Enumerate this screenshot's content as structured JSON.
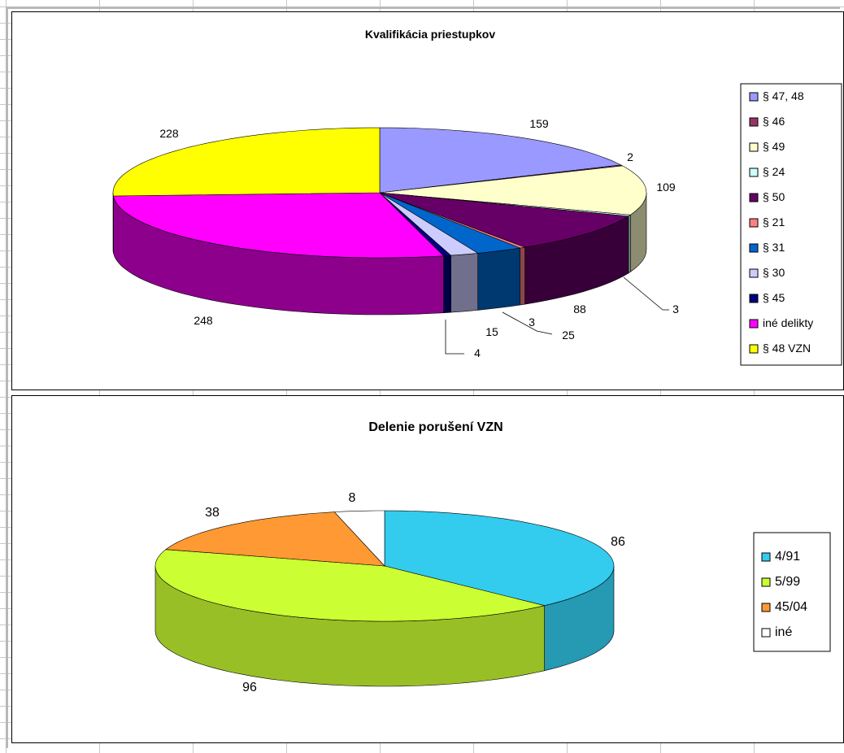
{
  "chart_data": [
    {
      "type": "pie",
      "title": "Kvalifikácia priestupkov",
      "legend_placement": "right",
      "categories": [
        "§ 47, 48",
        "§ 46",
        "§ 49",
        "§ 24",
        "§ 50",
        "§ 21",
        "§ 31",
        "§ 30",
        "§ 45",
        "iné delikty",
        "§ 48 VZN"
      ],
      "values": [
        159,
        2,
        109,
        3,
        88,
        3,
        25,
        15,
        4,
        248,
        228
      ],
      "colors": [
        "#9999ff",
        "#993366",
        "#ffffcc",
        "#ccffff",
        "#660066",
        "#ff8080",
        "#0066cc",
        "#ccccff",
        "#000080",
        "#ff00ff",
        "#ffff00"
      ]
    },
    {
      "type": "pie",
      "title": "Delenie porušení VZN",
      "legend_placement": "right",
      "categories": [
        "4/91",
        "5/99",
        "45/04",
        "iné"
      ],
      "values": [
        86,
        96,
        38,
        8
      ],
      "colors": [
        "#33ccee",
        "#ccff33",
        "#ff9933",
        "#ffffff"
      ]
    }
  ]
}
